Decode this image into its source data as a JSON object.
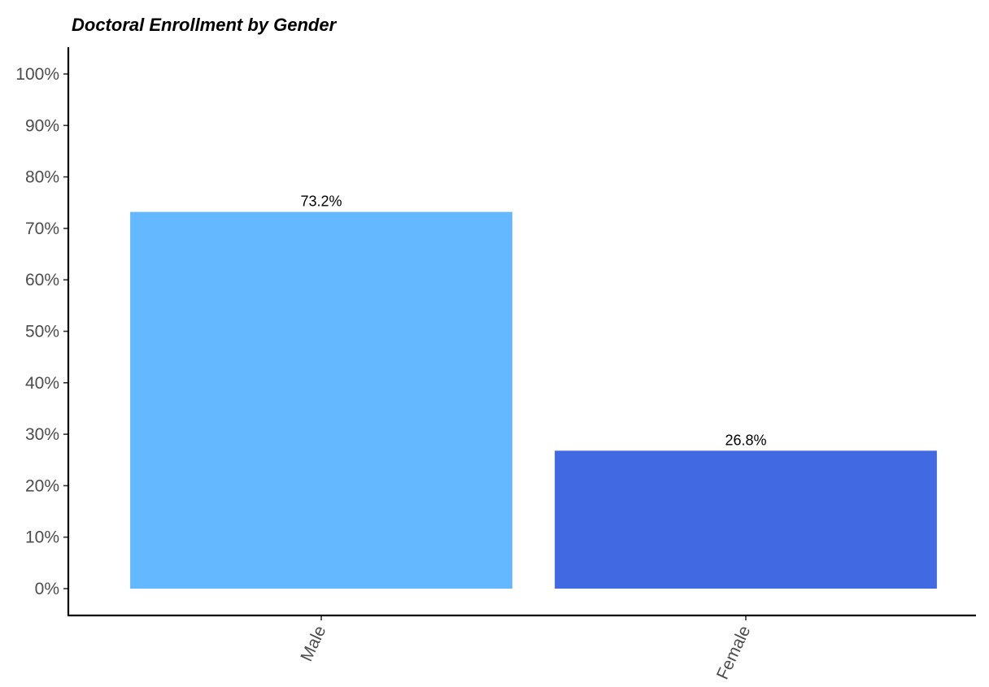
{
  "chart_data": {
    "type": "bar",
    "title": "Doctoral Enrollment by Gender",
    "xlabel": "",
    "ylabel": "",
    "categories": [
      "Male",
      "Female"
    ],
    "values": [
      73.2,
      26.8
    ],
    "data_labels": [
      "73.2%",
      "26.8%"
    ],
    "colors": [
      "#63b8ff",
      "#4169e1"
    ],
    "ylim": [
      0,
      100
    ],
    "yticks": [
      0,
      10,
      20,
      30,
      40,
      50,
      60,
      70,
      80,
      90,
      100
    ],
    "ytick_labels": [
      "0%",
      "10%",
      "20%",
      "30%",
      "40%",
      "50%",
      "60%",
      "70%",
      "80%",
      "90%",
      "100%"
    ],
    "grid": false,
    "legend": "none"
  }
}
